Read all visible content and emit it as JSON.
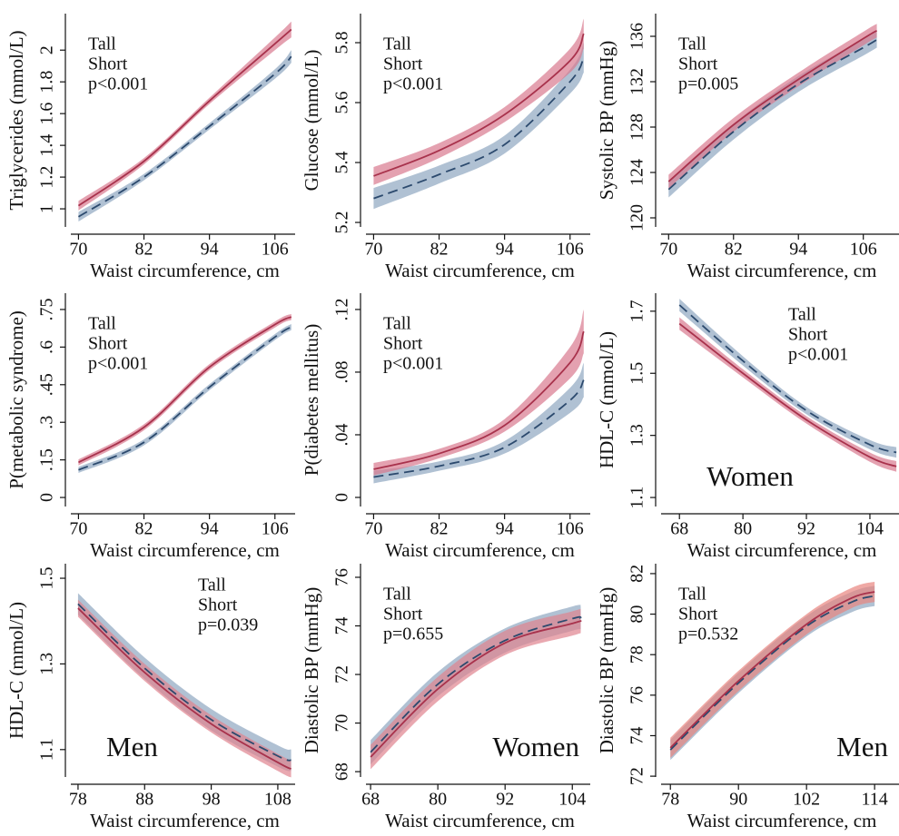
{
  "chart_data": [
    {
      "type": "line",
      "ylabel": "Triglycerides (mmol/L)",
      "xlabel": "Waist circumference, cm",
      "x": [
        70,
        82,
        94,
        106,
        109
      ],
      "series": [
        {
          "name": "Tall",
          "color": "#2c4a6e",
          "band_color": "#8fa7c0",
          "linestyle": "dashed",
          "values": [
            0.95,
            1.2,
            1.52,
            1.85,
            1.96
          ],
          "lower": [
            0.92,
            1.18,
            1.5,
            1.82,
            1.92
          ],
          "upper": [
            0.98,
            1.22,
            1.54,
            1.88,
            2.0
          ]
        },
        {
          "name": "Short",
          "color": "#a8324c",
          "band_color": "#d9798f",
          "linestyle": "solid",
          "values": [
            1.02,
            1.3,
            1.68,
            2.04,
            2.13
          ],
          "lower": [
            0.99,
            1.28,
            1.66,
            2.0,
            2.08
          ],
          "upper": [
            1.05,
            1.32,
            1.7,
            2.08,
            2.18
          ]
        }
      ],
      "xlim": [
        67.6,
        109.7
      ],
      "xticks": [
        70,
        82,
        94,
        106
      ],
      "ylim": [
        0.886,
        2.23
      ],
      "yticks": [
        1,
        1.2,
        1.4,
        1.6,
        1.8,
        2
      ],
      "legend": "upper left",
      "p_value": "p<0.001"
    },
    {
      "type": "line",
      "ylabel": "Glucose (mmol/L)",
      "xlabel": "Waist circumference, cm",
      "x": [
        70,
        82,
        94,
        106,
        108.5
      ],
      "series": [
        {
          "name": "Tall",
          "color": "#2c4a6e",
          "band_color": "#8fa7c0",
          "linestyle": "dashed",
          "values": [
            5.28,
            5.36,
            5.46,
            5.67,
            5.75
          ],
          "lower": [
            5.245,
            5.33,
            5.43,
            5.63,
            5.7
          ],
          "upper": [
            5.315,
            5.39,
            5.49,
            5.71,
            5.8
          ]
        },
        {
          "name": "Short",
          "color": "#a8324c",
          "band_color": "#d9798f",
          "linestyle": "solid",
          "values": [
            5.355,
            5.44,
            5.56,
            5.74,
            5.83
          ],
          "lower": [
            5.325,
            5.415,
            5.535,
            5.7,
            5.78
          ],
          "upper": [
            5.385,
            5.465,
            5.585,
            5.78,
            5.88
          ]
        }
      ],
      "xlim": [
        67.6,
        109.7
      ],
      "xticks": [
        70,
        82,
        94,
        106
      ],
      "ylim": [
        5.185,
        5.897
      ],
      "yticks": [
        5.2,
        5.4,
        5.6,
        5.8
      ],
      "legend": "upper left",
      "p_value": "p<0.001"
    },
    {
      "type": "line",
      "ylabel": "Systolic BP (mmHg)",
      "xlabel": "Waist circumference, cm",
      "x": [
        70,
        82,
        94,
        106,
        108.5
      ],
      "series": [
        {
          "name": "Tall",
          "color": "#2c4a6e",
          "band_color": "#8fa7c0",
          "linestyle": "dashed",
          "values": [
            122.5,
            127.6,
            131.8,
            135,
            135.7
          ],
          "lower": [
            121.8,
            126.9,
            131.1,
            134.3,
            135
          ],
          "upper": [
            123.2,
            128.3,
            132.5,
            135.7,
            136.4
          ]
        },
        {
          "name": "Short",
          "color": "#a8324c",
          "band_color": "#d9798f",
          "linestyle": "solid",
          "values": [
            123.2,
            128.2,
            132.2,
            135.8,
            136.5
          ],
          "lower": [
            122.6,
            127.6,
            131.6,
            135.2,
            135.9
          ],
          "upper": [
            123.8,
            128.8,
            132.8,
            136.4,
            137.1
          ]
        }
      ],
      "xlim": [
        67.6,
        112.6
      ],
      "xticks": [
        70,
        82,
        94,
        106
      ],
      "ylim": [
        119.2,
        138
      ],
      "yticks": [
        120,
        124,
        128,
        132,
        136
      ],
      "legend": "upper left",
      "p_value": "p=0.005"
    },
    {
      "type": "line",
      "ylabel": "P(metabolic syndrome)",
      "xlabel": "Waist circumference, cm",
      "x": [
        70,
        82,
        94,
        106,
        109
      ],
      "series": [
        {
          "name": "Tall",
          "color": "#2c4a6e",
          "band_color": "#8fa7c0",
          "linestyle": "dashed",
          "values": [
            0.11,
            0.22,
            0.44,
            0.64,
            0.68
          ],
          "lower": [
            0.098,
            0.208,
            0.428,
            0.628,
            0.668
          ],
          "upper": [
            0.122,
            0.232,
            0.452,
            0.652,
            0.692
          ]
        },
        {
          "name": "Short",
          "color": "#a8324c",
          "band_color": "#d9798f",
          "linestyle": "solid",
          "values": [
            0.14,
            0.28,
            0.52,
            0.69,
            0.72
          ],
          "lower": [
            0.128,
            0.268,
            0.508,
            0.678,
            0.708
          ],
          "upper": [
            0.152,
            0.292,
            0.532,
            0.702,
            0.732
          ]
        }
      ],
      "xlim": [
        67.6,
        109.7
      ],
      "xticks": [
        70,
        82,
        94,
        106
      ],
      "ylim": [
        -0.036,
        0.815
      ],
      "yticks": [
        0,
        {
          "value": 0.15,
          "label": ".15"
        },
        {
          "value": 0.3,
          "label": ".3"
        },
        {
          "value": 0.45,
          "label": ".45"
        },
        {
          "value": 0.6,
          "label": ".6"
        },
        {
          "value": 0.75,
          "label": ".75"
        }
      ],
      "legend": "upper left",
      "p_value": "p<0.001"
    },
    {
      "type": "line",
      "ylabel": "P(diabetes mellitus)",
      "xlabel": "Waist circumference, cm",
      "x": [
        70,
        82,
        94,
        106,
        108.5
      ],
      "series": [
        {
          "name": "Tall",
          "color": "#2c4a6e",
          "band_color": "#8fa7c0",
          "linestyle": "dashed",
          "values": [
            0.013,
            0.02,
            0.032,
            0.062,
            0.075
          ],
          "lower": [
            0.009,
            0.017,
            0.028,
            0.054,
            0.064
          ],
          "upper": [
            0.017,
            0.023,
            0.036,
            0.07,
            0.086
          ]
        },
        {
          "name": "Short",
          "color": "#a8324c",
          "band_color": "#d9798f",
          "linestyle": "solid",
          "values": [
            0.018,
            0.028,
            0.046,
            0.086,
            0.106
          ],
          "lower": [
            0.014,
            0.025,
            0.042,
            0.076,
            0.092
          ],
          "upper": [
            0.022,
            0.031,
            0.05,
            0.096,
            0.12
          ]
        }
      ],
      "xlim": [
        67.6,
        109.7
      ],
      "xticks": [
        70,
        82,
        94,
        106
      ],
      "ylim": [
        -0.0058,
        0.1304
      ],
      "yticks": [
        0,
        {
          "value": 0.04,
          "label": ".04"
        },
        {
          "value": 0.08,
          "label": ".08"
        },
        {
          "value": 0.12,
          "label": ".12"
        }
      ],
      "legend": "upper left",
      "p_value": "p<0.001"
    },
    {
      "type": "line",
      "ylabel": "HDL-C (mmol/L)",
      "xlabel": "Waist circumference, cm",
      "x": [
        68,
        80,
        92,
        104,
        109
      ],
      "series": [
        {
          "name": "Tall",
          "color": "#2c4a6e",
          "band_color": "#8fa7c0",
          "linestyle": "dashed",
          "values": [
            1.72,
            1.54,
            1.38,
            1.27,
            1.245
          ],
          "lower": [
            1.7,
            1.525,
            1.368,
            1.255,
            1.228
          ],
          "upper": [
            1.74,
            1.555,
            1.392,
            1.285,
            1.262
          ]
        },
        {
          "name": "Short",
          "color": "#a8324c",
          "band_color": "#d9798f",
          "linestyle": "solid",
          "values": [
            1.66,
            1.5,
            1.35,
            1.23,
            1.2
          ],
          "lower": [
            1.64,
            1.487,
            1.338,
            1.215,
            1.183
          ],
          "upper": [
            1.68,
            1.513,
            1.362,
            1.245,
            1.217
          ]
        }
      ],
      "xlim": [
        63.5,
        109.5
      ],
      "xticks": [
        68,
        80,
        92,
        104
      ],
      "ylim": [
        1.071,
        1.758
      ],
      "yticks": [
        1.1,
        1.3,
        1.5,
        1.7
      ],
      "legend": "upper right",
      "p_value": "p<0.001",
      "annotation": {
        "text": "Women",
        "loc": "lower center"
      }
    },
    {
      "type": "line",
      "ylabel": "HDL-C (mmol/L)",
      "xlabel": "Waist circumference, cm",
      "x": [
        78,
        88,
        98,
        108,
        110
      ],
      "series": [
        {
          "name": "Tall",
          "color": "#2c4a6e",
          "band_color": "#8fa7c0",
          "linestyle": "dashed",
          "values": [
            1.44,
            1.29,
            1.17,
            1.085,
            1.075
          ],
          "lower": [
            1.415,
            1.265,
            1.145,
            1.06,
            1.05
          ],
          "upper": [
            1.465,
            1.315,
            1.195,
            1.11,
            1.1
          ]
        },
        {
          "name": "Short",
          "color": "#a8324c",
          "band_color": "#e0838f",
          "linestyle": "solid",
          "values": [
            1.43,
            1.28,
            1.16,
            1.07,
            1.055
          ],
          "lower": [
            1.41,
            1.26,
            1.14,
            1.05,
            1.035
          ],
          "upper": [
            1.45,
            1.3,
            1.18,
            1.09,
            1.075
          ]
        }
      ],
      "xlim": [
        76.1,
        110.6
      ],
      "xticks": [
        78,
        88,
        98,
        108
      ],
      "ylim": [
        1.036,
        1.534
      ],
      "yticks": [
        1.1,
        1.3,
        1.5
      ],
      "legend": "upper right",
      "p_value": "p=0.039",
      "annotation": {
        "text": "Men",
        "loc": "lower left"
      }
    },
    {
      "type": "line",
      "ylabel": "Diastolic BP (mmHg)",
      "xlabel": "Waist circumference, cm",
      "x": [
        68,
        80,
        92,
        104,
        105.5
      ],
      "series": [
        {
          "name": "Tall",
          "color": "#2c4a6e",
          "band_color": "#8fa7c0",
          "linestyle": "dashed",
          "values": [
            68.8,
            71.6,
            73.4,
            74.3,
            74.3
          ],
          "lower": [
            68.3,
            71.1,
            72.9,
            73.8,
            73.8
          ],
          "upper": [
            69.3,
            72.1,
            73.9,
            74.8,
            74.8
          ]
        },
        {
          "name": "Short",
          "color": "#a8324c",
          "band_color": "#e0838f",
          "linestyle": "solid",
          "values": [
            68.6,
            71.4,
            73.3,
            74.1,
            74.2
          ],
          "lower": [
            68.1,
            70.9,
            72.8,
            73.6,
            73.7
          ],
          "upper": [
            69.1,
            71.9,
            73.8,
            74.6,
            74.7
          ]
        }
      ],
      "xlim": [
        66.2,
        107.2
      ],
      "xticks": [
        68,
        80,
        92,
        104
      ],
      "ylim": [
        67.78,
        76.56
      ],
      "yticks": [
        68,
        70,
        72,
        74,
        76
      ],
      "legend": "upper left",
      "p_value": "p=0.655",
      "annotation": {
        "text": "Women",
        "loc": "lower right"
      }
    },
    {
      "type": "line",
      "ylabel": "Diastolic BP (mmHg)",
      "xlabel": "Waist circumference, cm",
      "x": [
        78,
        90,
        102,
        110,
        114
      ],
      "series": [
        {
          "name": "Tall",
          "color": "#2c4a6e",
          "band_color": "#8fa7c0",
          "linestyle": "dashed",
          "values": [
            73.3,
            76.6,
            79.4,
            80.6,
            80.9
          ],
          "lower": [
            72.8,
            76.1,
            78.9,
            80.1,
            80.4
          ],
          "upper": [
            73.8,
            77.1,
            79.9,
            81.1,
            81.4
          ]
        },
        {
          "name": "Short",
          "color": "#a8324c",
          "band_color": "#e8847f",
          "linestyle": "solid",
          "values": [
            73.4,
            76.7,
            79.5,
            80.8,
            81.1
          ],
          "lower": [
            72.9,
            76.2,
            79,
            80.3,
            80.6
          ],
          "upper": [
            73.9,
            77.2,
            80,
            81.3,
            81.6
          ]
        }
      ],
      "xlim": [
        75.4,
        118.3
      ],
      "xticks": [
        78,
        90,
        102,
        114
      ],
      "ylim": [
        71.96,
        82.49
      ],
      "yticks": [
        72,
        74,
        76,
        78,
        80,
        82
      ],
      "legend": "upper left",
      "p_value": "p=0.532",
      "annotation": {
        "text": "Men",
        "loc": "lower right"
      }
    }
  ]
}
